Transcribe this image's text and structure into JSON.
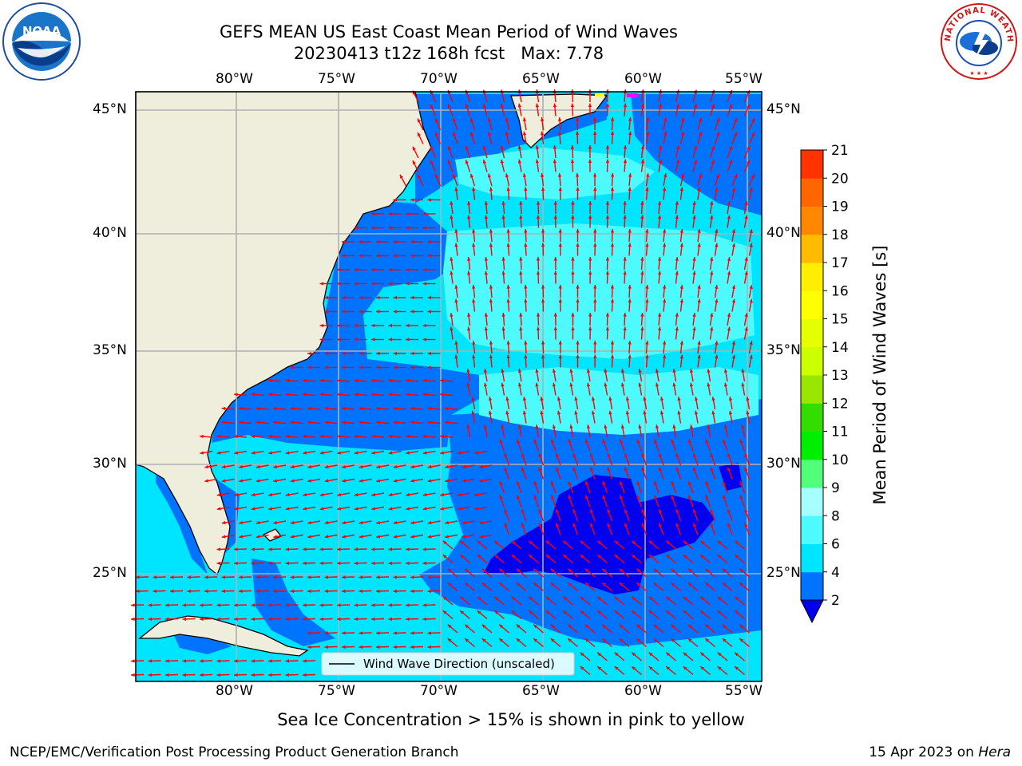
{
  "title": {
    "line1": "GEFS MEAN US East Coast Mean Period of Wind Waves",
    "line2": "20230413 t12z 168h fcst   Max: 7.78"
  },
  "map": {
    "lon_labels": [
      "80°W",
      "75°W",
      "70°W",
      "65°W",
      "60°W",
      "55°W"
    ],
    "lat_labels": [
      "45°N",
      "40°N",
      "35°N",
      "30°N",
      "25°N"
    ],
    "legend_label": "Wind Wave Direction (unscaled)",
    "colors": {
      "land": "#efeedc",
      "arrow": "#ff0000",
      "grid": "#b0b0b0"
    }
  },
  "colorbar": {
    "label": "Mean Period of Wind Waves [s]",
    "ticks": [
      "2",
      "4",
      "6",
      "8",
      "9",
      "10",
      "11",
      "12",
      "13",
      "14",
      "15",
      "16",
      "17",
      "18",
      "19",
      "20",
      "21"
    ],
    "colors": [
      "#0073ff",
      "#00e5ff",
      "#4dfbff",
      "#a5ffff",
      "#52ff7a",
      "#00ee00",
      "#33dd00",
      "#99e600",
      "#ccff00",
      "#e6ff00",
      "#ffff00",
      "#ffee00",
      "#ffbb00",
      "#ff8800",
      "#ff6600",
      "#ff3300",
      "#ff0000"
    ],
    "under_color": "#0000ee"
  },
  "note": "Sea Ice Concentration > 15% is shown in pink to yellow",
  "footer": {
    "left": "NCEP/EMC/Verification Post Processing Product Generation Branch",
    "right_date": "15 Apr 2023 on ",
    "right_host": "Hera"
  },
  "logos": {
    "left": "NOAA",
    "right": "NATIONAL WEATHER SERVICE"
  }
}
